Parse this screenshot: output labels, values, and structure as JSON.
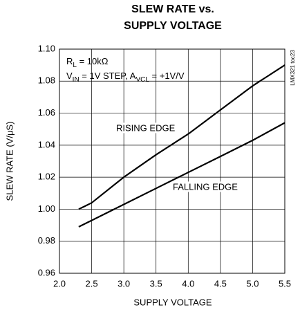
{
  "chart_data": {
    "type": "line",
    "title": [
      "SLEW RATE vs.",
      "SUPPLY VOLTAGE"
    ],
    "xlabel": "SUPPLY VOLTAGE",
    "ylabel": "SLEW RATE (V/μS)",
    "side_label": "LMX321 toc23",
    "annotations": [
      [
        "R",
        "L",
        " = 10kΩ"
      ],
      [
        "V",
        "IN",
        " = 1V STEP, A",
        "VCL",
        " = +1V/V"
      ]
    ],
    "x": [
      2.3,
      2.5,
      3.0,
      3.5,
      4.0,
      4.5,
      5.0,
      5.5
    ],
    "series": [
      {
        "name": "RISING EDGE",
        "color": "#000000",
        "values": [
          1.0,
          1.004,
          1.02,
          1.034,
          1.047,
          1.062,
          1.077,
          1.09
        ]
      },
      {
        "name": "FALLING EDGE",
        "color": "#000000",
        "values": [
          0.989,
          0.993,
          1.003,
          1.013,
          1.023,
          1.033,
          1.043,
          1.054
        ]
      }
    ],
    "xlim": [
      2.0,
      5.5
    ],
    "xticks": [
      {
        "value": 2,
        "label": "2.0"
      },
      2.5,
      {
        "value": 3,
        "label": "3.0"
      },
      3.5,
      {
        "value": 4,
        "label": "4.0"
      },
      4.5,
      {
        "value": 5,
        "label": "5.0"
      },
      5.5
    ],
    "ylim": [
      0.96,
      1.1
    ],
    "yticks": [
      0.96,
      0.98,
      {
        "value": 1,
        "label": "1.00"
      },
      1.02,
      1.04,
      1.06,
      1.08,
      {
        "value": 1.1,
        "label": "1.10"
      }
    ],
    "grid": true
  }
}
